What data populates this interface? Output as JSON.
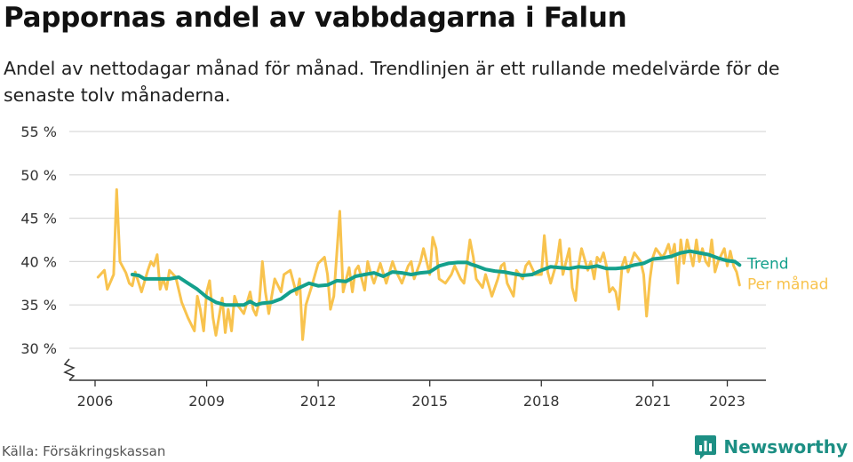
{
  "header": {
    "title": "Pappornas andel av vabbdagarna i Falun",
    "subtitle": "Andel av nettodagar månad för månad. Trendlinjen är ett rullande medelvärde för de senaste tolv månaderna."
  },
  "footer": {
    "source": "Källa: Försäkringskassan",
    "brand": "Newsworthy",
    "brand_icon": "bar-chart-speech-bubble-icon"
  },
  "colors": {
    "trend": "#14a08c",
    "monthly": "#f8c34e",
    "grid": "#d9d9d9",
    "axis": "#333333",
    "brand": "#1d8f84"
  },
  "chart_data": {
    "type": "line",
    "title": "Pappornas andel av vabbdagarna i Falun",
    "xlabel": "",
    "ylabel": "",
    "unit": "%",
    "xlim": [
      2005.6,
      2024.1
    ],
    "ylim": [
      27.5,
      56
    ],
    "y_axis_break": true,
    "y_ticks": [
      30,
      35,
      40,
      45,
      50,
      55
    ],
    "y_tick_labels": [
      "30 %",
      "35 %",
      "40 %",
      "45 %",
      "50 %",
      "55 %"
    ],
    "x_ticks": [
      2006,
      2009,
      2012,
      2015,
      2018,
      2021,
      2023
    ],
    "x_tick_labels": [
      "2006",
      "2009",
      "2012",
      "2015",
      "2018",
      "2021",
      "2023"
    ],
    "grid": true,
    "legend": "inline labels at right end of series",
    "series": [
      {
        "name": "Per månad",
        "role": "monthly",
        "points": [
          [
            2006.08,
            38.2
          ],
          [
            2006.25,
            39.0
          ],
          [
            2006.33,
            36.8
          ],
          [
            2006.5,
            38.5
          ],
          [
            2006.58,
            48.3
          ],
          [
            2006.67,
            40.0
          ],
          [
            2006.83,
            38.7
          ],
          [
            2006.92,
            37.5
          ],
          [
            2007.0,
            37.2
          ],
          [
            2007.08,
            38.8
          ],
          [
            2007.25,
            36.5
          ],
          [
            2007.42,
            39.0
          ],
          [
            2007.5,
            40.0
          ],
          [
            2007.58,
            39.5
          ],
          [
            2007.67,
            40.8
          ],
          [
            2007.75,
            36.8
          ],
          [
            2007.83,
            38.0
          ],
          [
            2007.92,
            36.8
          ],
          [
            2008.0,
            39.0
          ],
          [
            2008.17,
            38.2
          ],
          [
            2008.33,
            35.3
          ],
          [
            2008.5,
            33.5
          ],
          [
            2008.67,
            32.0
          ],
          [
            2008.75,
            36.0
          ],
          [
            2008.83,
            34.5
          ],
          [
            2008.92,
            32.0
          ],
          [
            2009.0,
            36.5
          ],
          [
            2009.08,
            37.8
          ],
          [
            2009.17,
            33.5
          ],
          [
            2009.25,
            31.5
          ],
          [
            2009.42,
            35.8
          ],
          [
            2009.5,
            31.8
          ],
          [
            2009.58,
            34.5
          ],
          [
            2009.67,
            32.0
          ],
          [
            2009.75,
            36.0
          ],
          [
            2009.83,
            35.0
          ],
          [
            2010.0,
            34.0
          ],
          [
            2010.17,
            36.5
          ],
          [
            2010.25,
            34.5
          ],
          [
            2010.33,
            33.8
          ],
          [
            2010.42,
            35.5
          ],
          [
            2010.5,
            40.0
          ],
          [
            2010.58,
            36.5
          ],
          [
            2010.67,
            34.0
          ],
          [
            2010.75,
            36.0
          ],
          [
            2010.83,
            38.0
          ],
          [
            2011.0,
            36.5
          ],
          [
            2011.08,
            38.5
          ],
          [
            2011.25,
            39.0
          ],
          [
            2011.42,
            36.2
          ],
          [
            2011.5,
            38.0
          ],
          [
            2011.58,
            31.0
          ],
          [
            2011.67,
            35.0
          ],
          [
            2011.83,
            37.2
          ],
          [
            2012.0,
            39.8
          ],
          [
            2012.17,
            40.5
          ],
          [
            2012.25,
            38.5
          ],
          [
            2012.33,
            34.5
          ],
          [
            2012.42,
            36.0
          ],
          [
            2012.5,
            41.0
          ],
          [
            2012.58,
            45.8
          ],
          [
            2012.67,
            36.5
          ],
          [
            2012.83,
            39.3
          ],
          [
            2012.92,
            36.5
          ],
          [
            2013.0,
            39.0
          ],
          [
            2013.08,
            39.5
          ],
          [
            2013.25,
            36.7
          ],
          [
            2013.33,
            40.0
          ],
          [
            2013.42,
            38.5
          ],
          [
            2013.5,
            37.5
          ],
          [
            2013.67,
            39.8
          ],
          [
            2013.83,
            37.5
          ],
          [
            2014.0,
            40.0
          ],
          [
            2014.08,
            39.0
          ],
          [
            2014.25,
            37.5
          ],
          [
            2014.42,
            39.5
          ],
          [
            2014.5,
            40.0
          ],
          [
            2014.58,
            38.0
          ],
          [
            2014.75,
            40.0
          ],
          [
            2014.83,
            41.5
          ],
          [
            2015.0,
            38.5
          ],
          [
            2015.08,
            42.8
          ],
          [
            2015.17,
            41.5
          ],
          [
            2015.25,
            38.0
          ],
          [
            2015.42,
            37.5
          ],
          [
            2015.58,
            38.5
          ],
          [
            2015.67,
            39.5
          ],
          [
            2015.83,
            38.0
          ],
          [
            2015.92,
            37.5
          ],
          [
            2016.0,
            39.8
          ],
          [
            2016.08,
            42.5
          ],
          [
            2016.17,
            40.5
          ],
          [
            2016.25,
            38.0
          ],
          [
            2016.42,
            37.0
          ],
          [
            2016.5,
            38.5
          ],
          [
            2016.67,
            36.0
          ],
          [
            2016.83,
            38.0
          ],
          [
            2016.92,
            39.5
          ],
          [
            2017.0,
            39.8
          ],
          [
            2017.08,
            37.5
          ],
          [
            2017.25,
            36.0
          ],
          [
            2017.33,
            39.0
          ],
          [
            2017.5,
            38.0
          ],
          [
            2017.58,
            39.5
          ],
          [
            2017.67,
            40.0
          ],
          [
            2017.83,
            38.5
          ],
          [
            2018.0,
            38.5
          ],
          [
            2018.08,
            43.0
          ],
          [
            2018.17,
            38.8
          ],
          [
            2018.25,
            37.5
          ],
          [
            2018.42,
            40.0
          ],
          [
            2018.5,
            42.5
          ],
          [
            2018.58,
            38.5
          ],
          [
            2018.75,
            41.5
          ],
          [
            2018.83,
            37.0
          ],
          [
            2018.92,
            35.5
          ],
          [
            2019.0,
            39.5
          ],
          [
            2019.08,
            41.5
          ],
          [
            2019.25,
            39.0
          ],
          [
            2019.33,
            40.0
          ],
          [
            2019.42,
            38.0
          ],
          [
            2019.5,
            40.5
          ],
          [
            2019.58,
            40.0
          ],
          [
            2019.67,
            41.0
          ],
          [
            2019.75,
            39.5
          ],
          [
            2019.83,
            36.5
          ],
          [
            2019.92,
            37.0
          ],
          [
            2020.0,
            36.5
          ],
          [
            2020.08,
            34.5
          ],
          [
            2020.17,
            39.5
          ],
          [
            2020.25,
            40.5
          ],
          [
            2020.33,
            38.8
          ],
          [
            2020.42,
            40.0
          ],
          [
            2020.5,
            41.0
          ],
          [
            2020.67,
            40.0
          ],
          [
            2020.75,
            38.5
          ],
          [
            2020.83,
            33.7
          ],
          [
            2020.92,
            38.0
          ],
          [
            2021.0,
            40.5
          ],
          [
            2021.08,
            41.5
          ],
          [
            2021.25,
            40.5
          ],
          [
            2021.33,
            41.0
          ],
          [
            2021.42,
            42.0
          ],
          [
            2021.5,
            40.5
          ],
          [
            2021.58,
            42.0
          ],
          [
            2021.67,
            37.5
          ],
          [
            2021.75,
            42.5
          ],
          [
            2021.83,
            39.8
          ],
          [
            2021.92,
            42.5
          ],
          [
            2022.0,
            41.0
          ],
          [
            2022.08,
            39.5
          ],
          [
            2022.17,
            42.5
          ],
          [
            2022.25,
            40.0
          ],
          [
            2022.33,
            41.5
          ],
          [
            2022.42,
            40.0
          ],
          [
            2022.5,
            39.5
          ],
          [
            2022.58,
            42.5
          ],
          [
            2022.67,
            38.8
          ],
          [
            2022.75,
            40.0
          ],
          [
            2022.92,
            41.5
          ],
          [
            2023.0,
            39.5
          ],
          [
            2023.08,
            41.2
          ],
          [
            2023.17,
            39.5
          ],
          [
            2023.25,
            38.8
          ],
          [
            2023.33,
            37.3
          ]
        ]
      },
      {
        "name": "Trend",
        "role": "trend",
        "points": [
          [
            2007.0,
            38.5
          ],
          [
            2007.17,
            38.4
          ],
          [
            2007.33,
            38.0
          ],
          [
            2007.5,
            38.0
          ],
          [
            2007.67,
            38.0
          ],
          [
            2008.0,
            38.0
          ],
          [
            2008.25,
            38.2
          ],
          [
            2008.5,
            37.5
          ],
          [
            2008.75,
            36.8
          ],
          [
            2009.0,
            35.9
          ],
          [
            2009.25,
            35.3
          ],
          [
            2009.5,
            35.0
          ],
          [
            2009.75,
            35.0
          ],
          [
            2010.0,
            35.0
          ],
          [
            2010.17,
            35.4
          ],
          [
            2010.33,
            35.0
          ],
          [
            2010.5,
            35.2
          ],
          [
            2010.75,
            35.3
          ],
          [
            2011.0,
            35.7
          ],
          [
            2011.25,
            36.5
          ],
          [
            2011.5,
            37.0
          ],
          [
            2011.75,
            37.5
          ],
          [
            2012.0,
            37.2
          ],
          [
            2012.25,
            37.3
          ],
          [
            2012.5,
            37.8
          ],
          [
            2012.75,
            37.7
          ],
          [
            2013.0,
            38.3
          ],
          [
            2013.25,
            38.5
          ],
          [
            2013.5,
            38.7
          ],
          [
            2013.75,
            38.3
          ],
          [
            2014.0,
            38.8
          ],
          [
            2014.25,
            38.7
          ],
          [
            2014.5,
            38.5
          ],
          [
            2014.75,
            38.7
          ],
          [
            2015.0,
            38.8
          ],
          [
            2015.25,
            39.5
          ],
          [
            2015.5,
            39.8
          ],
          [
            2015.75,
            39.9
          ],
          [
            2016.0,
            39.9
          ],
          [
            2016.1,
            39.7
          ],
          [
            2016.25,
            39.5
          ],
          [
            2016.5,
            39.1
          ],
          [
            2016.75,
            38.9
          ],
          [
            2017.0,
            38.8
          ],
          [
            2017.25,
            38.6
          ],
          [
            2017.5,
            38.4
          ],
          [
            2017.75,
            38.5
          ],
          [
            2018.0,
            39.0
          ],
          [
            2018.25,
            39.4
          ],
          [
            2018.5,
            39.3
          ],
          [
            2018.75,
            39.2
          ],
          [
            2019.0,
            39.4
          ],
          [
            2019.25,
            39.3
          ],
          [
            2019.5,
            39.5
          ],
          [
            2019.75,
            39.2
          ],
          [
            2020.0,
            39.2
          ],
          [
            2020.25,
            39.3
          ],
          [
            2020.5,
            39.6
          ],
          [
            2020.75,
            39.8
          ],
          [
            2021.0,
            40.3
          ],
          [
            2021.25,
            40.4
          ],
          [
            2021.5,
            40.6
          ],
          [
            2021.75,
            41.0
          ],
          [
            2022.0,
            41.2
          ],
          [
            2022.25,
            41.0
          ],
          [
            2022.5,
            40.8
          ],
          [
            2022.75,
            40.4
          ],
          [
            2023.0,
            40.1
          ],
          [
            2023.2,
            40.0
          ],
          [
            2023.33,
            39.6
          ]
        ]
      }
    ]
  }
}
